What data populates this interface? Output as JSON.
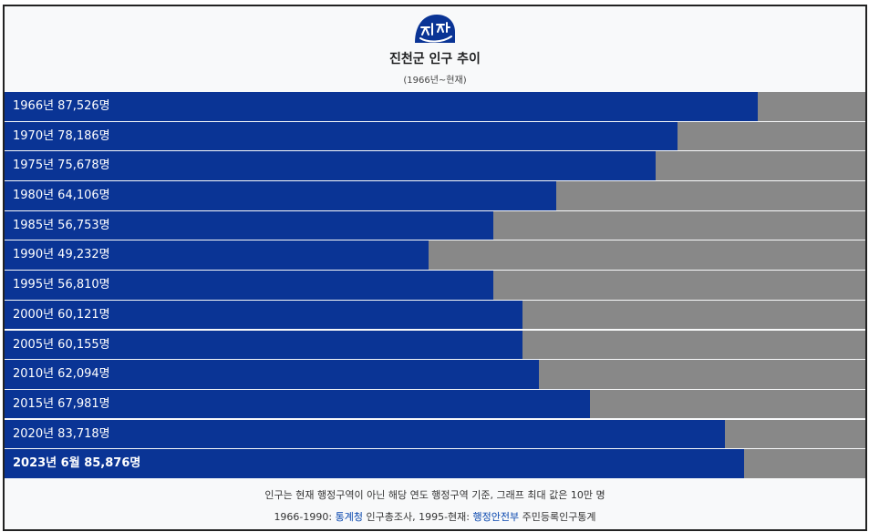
{
  "header": {
    "title": "진천군 인구 추이",
    "subtitle": "(1966년~현재)",
    "logo_icon": "jincheon-county-logo-icon"
  },
  "colors": {
    "bar_fill": "#0a3495",
    "bar_remainder": "#888888",
    "background": "#f8f9fa",
    "link": "#0645ad"
  },
  "chart_data": {
    "type": "bar",
    "orientation": "horizontal",
    "title": "진천군 인구 추이",
    "subtitle": "(1966년~현재)",
    "xlim": [
      0,
      100000
    ],
    "grid": false,
    "categories": [
      "1966년",
      "1970년",
      "1975년",
      "1980년",
      "1985년",
      "1990년",
      "1995년",
      "2000년",
      "2005년",
      "2010년",
      "2015년",
      "2020년",
      "2023년 6월"
    ],
    "values": [
      87526,
      78186,
      75678,
      64106,
      56753,
      49232,
      56810,
      60121,
      60155,
      62094,
      67981,
      83718,
      85876
    ],
    "labels": [
      "1966년 87,526명",
      "1970년 78,186명",
      "1975년 75,678명",
      "1980년 64,106명",
      "1985년 56,753명",
      "1990년 49,232명",
      "1995년 56,810명",
      "2000년 60,121명",
      "2005년 60,155명",
      "2010년 62,094명",
      "2015년 67,981명",
      "2020년 83,718명",
      "2023년 6월 85,876명"
    ],
    "emphasized_index": 12
  },
  "footer": {
    "note": "인구는 현재 행정구역이 아닌 해당 연도 행정구역 기준, 그래프 최대 값은 10만 명",
    "source_part1": "1966-1990: ",
    "source_link1": "통계청",
    "source_part2": " 인구총조사, 1995-현재: ",
    "source_link2": "행정안전부",
    "source_part3": " 주민등록인구통계"
  }
}
